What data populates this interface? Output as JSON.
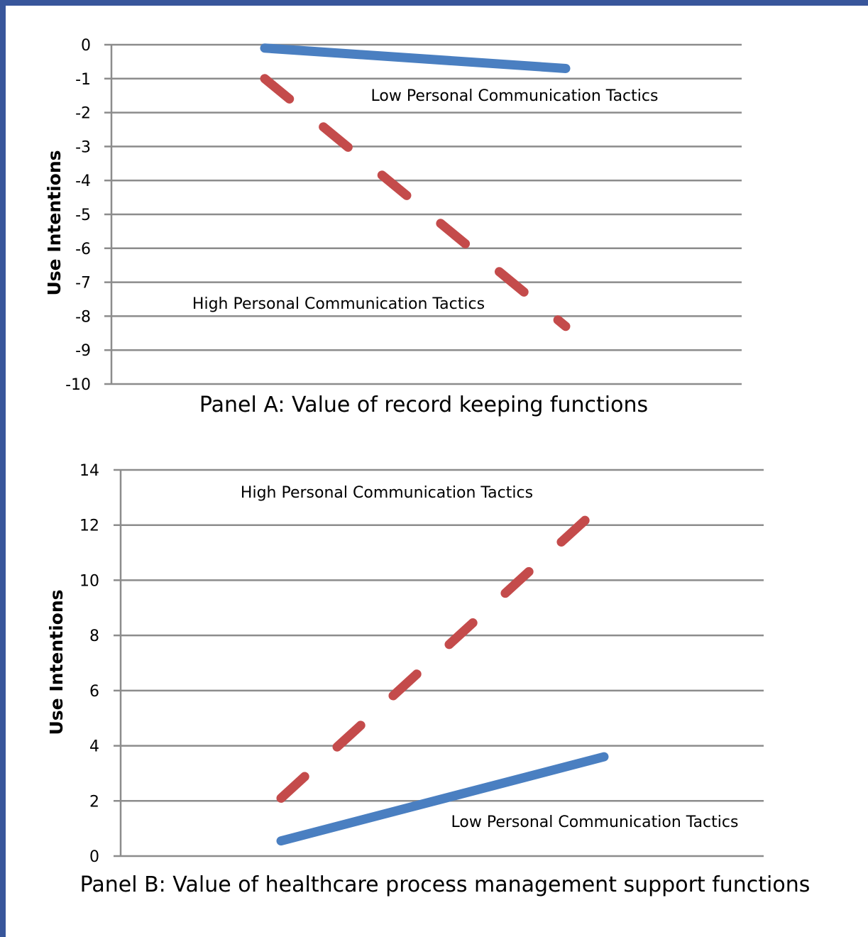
{
  "chart_data": [
    {
      "type": "line",
      "title": "Panel A: Value of record keeping functions",
      "ylabel": "Use Intentions",
      "xlabel": "",
      "ylim": [
        -10,
        0
      ],
      "yticks": [
        "0",
        "-1",
        "-2",
        "-3",
        "-4",
        "-5",
        "-6",
        "-7",
        "-8",
        "-9",
        "-10"
      ],
      "grid": true,
      "series": [
        {
          "name": "Low Personal Communication Tactics",
          "values": [
            -0.1,
            -0.7
          ],
          "color": "#4a7fc1",
          "style": "solid"
        },
        {
          "name": "High Personal Communication Tactics",
          "values": [
            -1.0,
            -8.3
          ],
          "color": "#c44b4b",
          "style": "dashed"
        }
      ]
    },
    {
      "type": "line",
      "title": "Panel B: Value of healthcare process management support functions",
      "ylabel": "Use Intentions",
      "xlabel": "",
      "ylim": [
        0,
        14
      ],
      "yticks": [
        "14",
        "12",
        "10",
        "8",
        "6",
        "4",
        "2",
        "0"
      ],
      "grid": true,
      "series": [
        {
          "name": "High Personal Communication Tactics",
          "values": [
            2.1,
            12.8
          ],
          "color": "#c44b4b",
          "style": "dashed"
        },
        {
          "name": "Low Personal Communication Tactics",
          "values": [
            0.55,
            3.6
          ],
          "color": "#4a7fc1",
          "style": "solid"
        }
      ]
    }
  ]
}
